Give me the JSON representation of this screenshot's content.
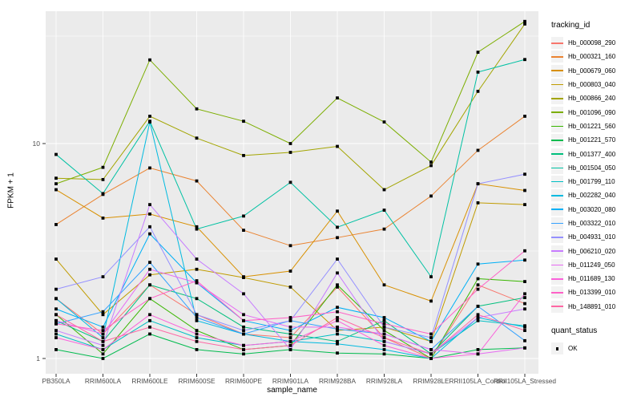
{
  "chart_data": {
    "type": "line",
    "title": "",
    "xlabel": "sample_name",
    "ylabel": "FPKM + 1",
    "yscale": "log10",
    "grid": true,
    "panel_bg": "#EBEBEB",
    "grid_color": "#FFFFFF",
    "tick_label_color": "#4D4D4D",
    "marker": "black-square",
    "legend_title": "tracking_id",
    "legend2": {
      "title": "quant_status",
      "items": [
        "OK"
      ]
    },
    "yticks": [
      {
        "label": "1",
        "value": 1
      },
      {
        "label": "10",
        "value": 10
      }
    ],
    "minor_gridlines": [
      3.1623,
      31.623
    ],
    "ylim": [
      0.83,
      51
    ],
    "categories": [
      "PB350LA",
      "RRIM600LA",
      "RRIM600LE",
      "RRIM600SE",
      "RRIM600PE",
      "RRIM901LA",
      "RRIM928BA",
      "RRIM928LA",
      "RRIM928LE",
      "RRII105LA_Control",
      "RRII105LA_Stressed"
    ],
    "series": [
      {
        "name": "Hb_000098_290",
        "color": "#F8766D",
        "values": [
          1.9,
          1.3,
          2.2,
          1.6,
          1.3,
          1.25,
          2.15,
          1.25,
          1.0,
          2.2,
          1.8
        ]
      },
      {
        "name": "Hb_000321_160",
        "color": "#EA8331",
        "values": [
          4.2,
          5.8,
          7.7,
          6.7,
          3.95,
          3.35,
          3.65,
          4.0,
          5.7,
          9.3,
          13.4
        ]
      },
      {
        "name": "Hb_000679_060",
        "color": "#D89000",
        "values": [
          6.1,
          4.5,
          4.7,
          4.1,
          2.4,
          2.55,
          4.85,
          2.2,
          1.85,
          6.5,
          6.05
        ]
      },
      {
        "name": "Hb_000803_040",
        "color": "#C09B00",
        "values": [
          2.9,
          1.6,
          2.45,
          2.6,
          2.38,
          2.15,
          1.35,
          1.4,
          1.2,
          5.3,
          5.2
        ]
      },
      {
        "name": "Hb_000866_240",
        "color": "#A3A500",
        "values": [
          6.9,
          6.8,
          13.4,
          10.6,
          8.8,
          9.1,
          9.7,
          6.1,
          7.9,
          17.5,
          36.0
        ]
      },
      {
        "name": "Hb_001096_090",
        "color": "#7CAE00",
        "values": [
          6.5,
          7.75,
          24.5,
          14.5,
          12.7,
          10.0,
          16.3,
          12.6,
          8.2,
          26.6,
          37.0
        ]
      },
      {
        "name": "Hb_001221_560",
        "color": "#39B600",
        "values": [
          1.6,
          1.05,
          1.9,
          1.35,
          1.1,
          1.15,
          2.2,
          1.35,
          1.0,
          2.35,
          2.28
        ]
      },
      {
        "name": "Hb_001221_570",
        "color": "#00BB4E",
        "values": [
          1.1,
          1.0,
          1.3,
          1.1,
          1.05,
          1.1,
          1.06,
          1.05,
          1.0,
          1.1,
          1.12
        ]
      },
      {
        "name": "Hb_001377_400",
        "color": "#00BF7D",
        "values": [
          1.5,
          1.2,
          2.2,
          1.9,
          1.4,
          1.3,
          1.2,
          1.5,
          1.05,
          1.75,
          1.92
        ]
      },
      {
        "name": "Hb_001504_050",
        "color": "#00C1A3",
        "values": [
          8.9,
          5.85,
          12.7,
          4.0,
          4.6,
          6.6,
          4.08,
          4.9,
          2.4,
          21.5,
          24.6
        ]
      },
      {
        "name": "Hb_001799_110",
        "color": "#00BFC4",
        "values": [
          1.3,
          1.1,
          1.5,
          1.25,
          1.15,
          1.2,
          1.3,
          1.2,
          1.05,
          1.5,
          1.42
        ]
      },
      {
        "name": "Hb_002282_040",
        "color": "#00BAE0",
        "values": [
          1.9,
          1.25,
          12.6,
          1.5,
          1.3,
          1.2,
          1.17,
          1.1,
          1.0,
          1.55,
          1.4
        ]
      },
      {
        "name": "Hb_003020_080",
        "color": "#00B0F6",
        "values": [
          1.7,
          1.4,
          3.8,
          2.25,
          1.5,
          1.35,
          1.73,
          1.55,
          1.2,
          2.75,
          2.87
        ]
      },
      {
        "name": "Hb_003322_010",
        "color": "#35A2FF",
        "values": [
          1.45,
          1.65,
          2.8,
          1.55,
          1.3,
          1.5,
          1.37,
          1.3,
          1.1,
          1.75,
          1.21
        ]
      },
      {
        "name": "Hb_004931_010",
        "color": "#9590FF",
        "values": [
          2.1,
          2.4,
          4.1,
          1.6,
          1.35,
          1.5,
          2.9,
          1.4,
          1.25,
          6.5,
          7.2
        ]
      },
      {
        "name": "Hb_006210_020",
        "color": "#C77CFF",
        "values": [
          1.35,
          1.15,
          5.2,
          2.9,
          2.0,
          1.1,
          2.5,
          1.2,
          1.05,
          1.55,
          1.7
        ]
      },
      {
        "name": "Hb_011249_050",
        "color": "#E76BF3",
        "values": [
          1.5,
          1.3,
          2.6,
          2.25,
          1.6,
          1.4,
          1.4,
          1.3,
          1.1,
          1.05,
          1.12
        ]
      },
      {
        "name": "Hb_011689_130",
        "color": "#FA62DB",
        "values": [
          1.25,
          1.1,
          1.6,
          1.3,
          1.15,
          1.2,
          1.5,
          1.15,
          1.0,
          1.05,
          2.0
        ]
      },
      {
        "name": "Hb_013399_010",
        "color": "#FF61C7",
        "values": [
          1.45,
          1.35,
          1.9,
          2.3,
          1.5,
          1.55,
          1.65,
          1.45,
          1.3,
          2.1,
          3.17
        ]
      },
      {
        "name": "Hb_148891_010",
        "color": "#FF67A4",
        "values": [
          1.6,
          1.2,
          1.4,
          1.2,
          1.1,
          1.15,
          1.55,
          1.25,
          1.05,
          1.6,
          1.35
        ]
      }
    ]
  }
}
